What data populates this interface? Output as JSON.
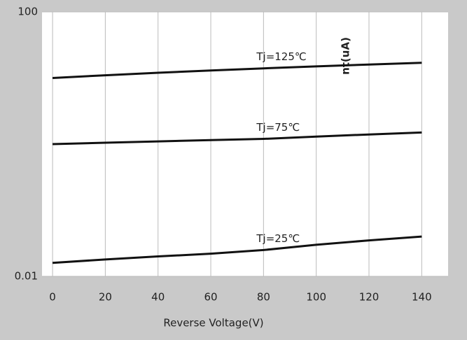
{
  "chart_data": {
    "type": "line",
    "x_label": "Reverse Voltage(V)",
    "y_label": "nt(uA)",
    "x": [
      0,
      20,
      40,
      60,
      80,
      100,
      120,
      140
    ],
    "series": [
      {
        "name": "Tj=125℃",
        "color": "#111111",
        "values": [
          10,
          11,
          12,
          13,
          14,
          15,
          16,
          17
        ]
      },
      {
        "name": "Tj=75℃",
        "color": "#111111",
        "values": [
          1.0,
          1.05,
          1.1,
          1.15,
          1.2,
          1.3,
          1.4,
          1.5
        ]
      },
      {
        "name": "Tj=25℃",
        "color": "#111111",
        "values": [
          0.016,
          0.018,
          0.02,
          0.022,
          0.025,
          0.03,
          0.035,
          0.04
        ]
      }
    ],
    "xlim": [
      -4,
      150
    ],
    "xticks": [
      0,
      20,
      40,
      60,
      80,
      100,
      120,
      140
    ],
    "ylim": [
      0.01,
      100
    ],
    "yticks": [
      0.01,
      100
    ],
    "log_y": true,
    "grid": true
  }
}
